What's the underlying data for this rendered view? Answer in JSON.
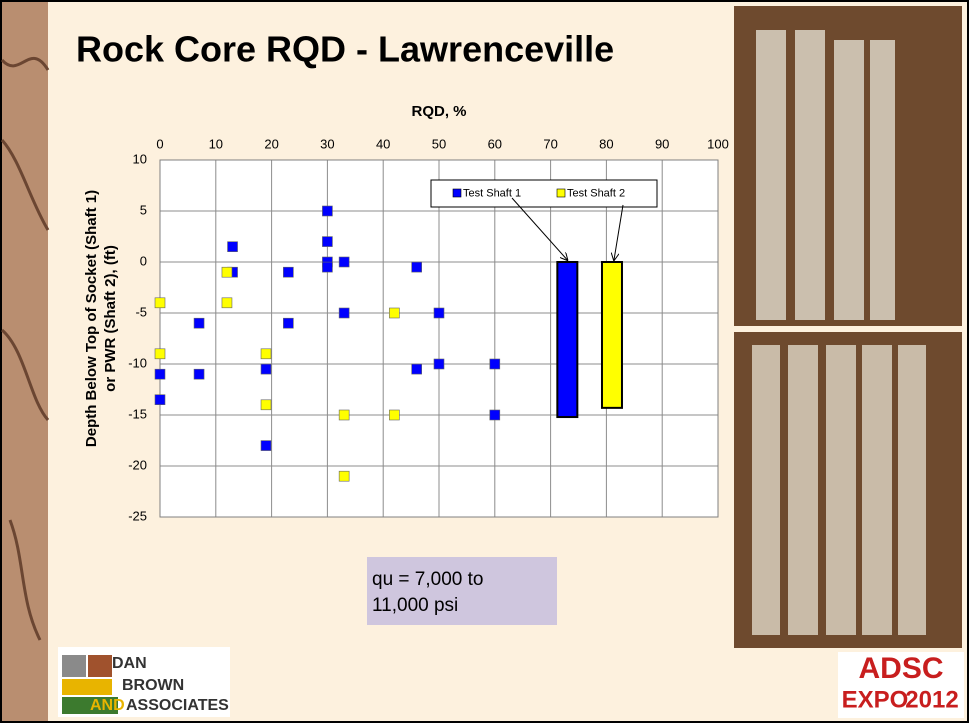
{
  "chart_data": {
    "type": "scatter",
    "title": "Rock Core RQD - Lawrenceville",
    "xlabel": "RQD, %",
    "ylabel": [
      "Depth Below Top of Socket (Shaft 1)",
      "or PWR (Shaft 2), (ft)"
    ],
    "xlim": [
      0,
      100
    ],
    "xticks": [
      0,
      10,
      20,
      30,
      40,
      50,
      60,
      70,
      80,
      90,
      100
    ],
    "ylim": [
      -25,
      10
    ],
    "yticks": [
      10,
      5,
      0,
      -5,
      -10,
      -15,
      -20,
      -25
    ],
    "grid": true,
    "series": [
      {
        "name": "Test Shaft 1",
        "color": "#0000ff",
        "x": [
          0,
          0,
          7,
          7,
          13,
          13,
          19,
          19,
          23,
          23,
          30,
          30,
          30,
          30,
          33,
          33,
          46,
          46,
          50,
          50,
          60,
          60
        ],
        "y": [
          -11,
          -13.5,
          -6,
          -11,
          1.5,
          -1,
          -10.5,
          -18,
          -1,
          -6,
          5,
          2,
          0,
          -0.5,
          0,
          -5,
          -0.5,
          -10.5,
          -5,
          -10,
          -10,
          -15
        ],
        "bar": {
          "x": 73,
          "value": -15.2
        }
      },
      {
        "name": "Test Shaft 2",
        "color": "#ffff00",
        "x": [
          0,
          0,
          12,
          12,
          19,
          19,
          33,
          33,
          42,
          42
        ],
        "y": [
          -4,
          -9,
          -1,
          -4,
          -9,
          -14,
          -15,
          -21,
          -5,
          -15
        ],
        "bar": {
          "x": 81,
          "value": -14.3
        }
      }
    ],
    "annotation": [
      "qu = 7,000 to",
      "11,000 psi"
    ]
  },
  "logos": {
    "left": [
      "DAN",
      "BROWN",
      "AND",
      "ASSOCIATES"
    ],
    "right": [
      "ADSC",
      "EXPO",
      "2012"
    ]
  }
}
